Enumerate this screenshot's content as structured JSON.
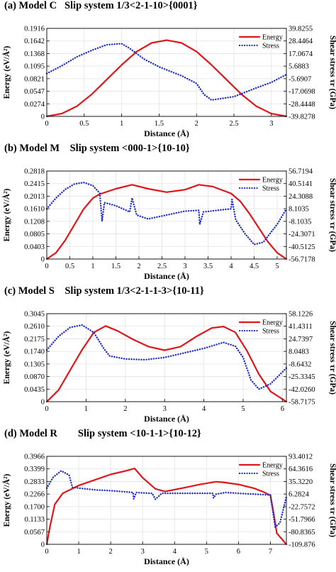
{
  "chart_data": [
    {
      "type": "line",
      "title": "(a) Model C   Slip system 1/3<2-1-10>{0001}",
      "xlabel": "Distance (Å)",
      "ylabel": "Energy (eV/Å²)",
      "y2label": "Shear stress τr (GPa)",
      "xlim": [
        0,
        3.2
      ],
      "xticks": [
        "0",
        "0.5",
        "1",
        "1.5",
        "2",
        "2.5",
        "3"
      ],
      "xtick_values": [
        0,
        0.5,
        1,
        1.5,
        2,
        2.5,
        3
      ],
      "ylim": [
        0,
        0.1916
      ],
      "yticks": [
        "0",
        "0.0274",
        "0.0547",
        "0.0821",
        "0.1095",
        "0.1368",
        "0.1642",
        "0.1916"
      ],
      "y2lim": [
        -39.8278,
        39.8255
      ],
      "y2ticks": [
        "-39.8278",
        "-28.4448",
        "-17.0698",
        "-5.6907",
        "5.6883",
        "17.0674",
        "28.4464",
        "39.8255"
      ],
      "legend_position": "top-right",
      "grid": true,
      "series": [
        {
          "name": "Energy",
          "axis": "left",
          "color": "#e0161b",
          "style": "solid",
          "x": [
            0,
            0.2,
            0.4,
            0.6,
            0.8,
            1.0,
            1.2,
            1.4,
            1.6,
            1.8,
            2.0,
            2.2,
            2.4,
            2.6,
            2.8,
            3.0,
            3.2
          ],
          "y": [
            0,
            0.006,
            0.022,
            0.048,
            0.08,
            0.112,
            0.141,
            0.16,
            0.166,
            0.16,
            0.141,
            0.112,
            0.08,
            0.048,
            0.022,
            0.006,
            0
          ]
        },
        {
          "name": "Stress",
          "axis": "right",
          "color": "#1f2ed1",
          "style": "dotted",
          "x": [
            0,
            0.2,
            0.4,
            0.6,
            0.8,
            1.0,
            1.1,
            1.3,
            1.5,
            1.8,
            2.0,
            2.1,
            2.2,
            2.5,
            2.8,
            3.0,
            3.2
          ],
          "y": [
            -1,
            6,
            14,
            20,
            25,
            26,
            22,
            12,
            5,
            -3,
            -10,
            -20,
            -25,
            -22,
            -14,
            -9,
            -2
          ]
        }
      ]
    },
    {
      "type": "line",
      "title": "(b) Model M    Slip system <000-1>{10-10}",
      "xlabel": "Distance (Å)",
      "ylabel": "Energy (eV/Å²)",
      "y2label": "Shear stress τr (GPa)",
      "xlim": [
        0,
        5.2
      ],
      "xticks": [
        "0",
        "0.5",
        "1",
        "1.5",
        "2",
        "2.5",
        "3",
        "3.5",
        "4",
        "4.5",
        "5"
      ],
      "xtick_values": [
        0,
        0.5,
        1,
        1.5,
        2,
        2.5,
        3,
        3.5,
        4,
        4.5,
        5
      ],
      "ylim": [
        0,
        0.2818
      ],
      "yticks": [
        "0",
        "0.0403",
        "0.0805",
        "0.1208",
        "0.1610",
        "0.2013",
        "0.2415",
        "0.2818"
      ],
      "y2lim": [
        -56.7178,
        56.7194
      ],
      "y2ticks": [
        "-56.7178",
        "-40.5125",
        "-24.3071",
        "-8.1035",
        "8.1035",
        "24.3088",
        "40.5141",
        "56.7194"
      ],
      "legend_position": "top-right",
      "grid": true,
      "series": [
        {
          "name": "Energy",
          "axis": "left",
          "color": "#e0161b",
          "style": "solid",
          "x": [
            0,
            0.2,
            0.4,
            0.6,
            0.8,
            1.0,
            1.15,
            1.5,
            1.85,
            2.2,
            2.6,
            3.0,
            3.3,
            3.6,
            4.0,
            4.2,
            4.4,
            4.6,
            4.8,
            5.0,
            5.2
          ],
          "y": [
            0,
            0.02,
            0.06,
            0.11,
            0.16,
            0.195,
            0.208,
            0.225,
            0.238,
            0.225,
            0.214,
            0.222,
            0.238,
            0.232,
            0.21,
            0.185,
            0.145,
            0.1,
            0.055,
            0.02,
            0
          ]
        },
        {
          "name": "Stress",
          "axis": "right",
          "color": "#1f2ed1",
          "style": "dotted",
          "x": [
            0,
            0.2,
            0.4,
            0.6,
            0.8,
            1.0,
            1.15,
            1.2,
            1.25,
            1.5,
            1.8,
            1.85,
            1.95,
            2.2,
            2.6,
            3.0,
            3.3,
            3.32,
            3.4,
            3.7,
            4.0,
            4.02,
            4.1,
            4.3,
            4.5,
            4.7,
            5.0,
            5.2
          ],
          "y": [
            8,
            22,
            33,
            40,
            42,
            38,
            28,
            -8,
            16,
            12,
            4,
            22,
            0,
            -5,
            0,
            5,
            6,
            -12,
            4,
            6,
            8,
            20,
            -6,
            -24,
            -38,
            -35,
            -12,
            8
          ]
        }
      ]
    },
    {
      "type": "line",
      "title": "(c) Model S    Slip system 1/3<2-1-1-3>{10-11}",
      "xlabel": "Distance (Å)",
      "ylabel": "Energy (eV/Å²)",
      "y2label": "Shear stress τr (GPa)",
      "xlim": [
        0,
        6.1
      ],
      "xticks": [
        "0",
        "1",
        "2",
        "3",
        "4",
        "5",
        "6"
      ],
      "xtick_values": [
        0,
        1,
        2,
        3,
        4,
        5,
        6
      ],
      "ylim": [
        0,
        0.3045
      ],
      "yticks": [
        "0",
        "0.0435",
        "0.0870",
        "0.1305",
        "0.1740",
        "0.2175",
        "0.2610",
        "0.3045"
      ],
      "y2lim": [
        -58.7175,
        58.1226
      ],
      "y2ticks": [
        "-58.7175",
        "-42.0260",
        "-25.3345",
        "-8.6432",
        "8.0483",
        "24.7397",
        "41.4311",
        "58.1226"
      ],
      "legend_position": "top-right",
      "grid": true,
      "series": [
        {
          "name": "Energy",
          "axis": "left",
          "color": "#e0161b",
          "style": "solid",
          "x": [
            0,
            0.3,
            0.6,
            0.9,
            1.2,
            1.5,
            1.8,
            2.2,
            2.6,
            3.0,
            3.4,
            3.8,
            4.2,
            4.5,
            4.8,
            5.1,
            5.4,
            5.7,
            6.1
          ],
          "y": [
            0,
            0.04,
            0.11,
            0.18,
            0.24,
            0.262,
            0.245,
            0.215,
            0.19,
            0.178,
            0.19,
            0.225,
            0.255,
            0.26,
            0.24,
            0.175,
            0.095,
            0.035,
            0
          ]
        },
        {
          "name": "Stress",
          "axis": "right",
          "color": "#1f2ed1",
          "style": "dotted",
          "x": [
            0,
            0.3,
            0.6,
            0.9,
            1.2,
            1.45,
            1.6,
            2.0,
            2.5,
            3.0,
            3.5,
            4.0,
            4.5,
            4.8,
            5.0,
            5.2,
            5.4,
            5.7,
            6.1
          ],
          "y": [
            10,
            28,
            40,
            43,
            33,
            12,
            2,
            -2,
            -3,
            0,
            6,
            12,
            20,
            15,
            0,
            -30,
            -42,
            -35,
            -14
          ]
        }
      ]
    },
    {
      "type": "line",
      "title": "(d) Model R        Slip system <10-1-1>{10-12}",
      "xlabel": "Distance (Å)",
      "ylabel": "Energy (eV/Å²)",
      "y2label": "Shear stress τr (GPa)",
      "xlim": [
        0,
        7.5
      ],
      "xticks": [
        "0",
        "1",
        "2",
        "3",
        "4",
        "5",
        "6",
        "7"
      ],
      "xtick_values": [
        0,
        1,
        2,
        3,
        4,
        5,
        6,
        7
      ],
      "ylim": [
        0,
        0.3966
      ],
      "yticks": [
        "0",
        "0.0567",
        "0.1133",
        "0.1700",
        "0.2266",
        "0.2833",
        "0.3399",
        "0.3966"
      ],
      "y2lim": [
        -109.876,
        93.4012
      ],
      "y2ticks": [
        "-109.876",
        "-80.8365",
        "-51.7966",
        "-22.7572",
        "6.2824",
        "35.3220",
        "64.3616",
        "93.4012"
      ],
      "legend_position": "top-right",
      "grid": true,
      "series": [
        {
          "name": "Energy",
          "axis": "left",
          "color": "#e0161b",
          "style": "solid",
          "x": [
            0,
            0.1,
            0.25,
            0.5,
            1.0,
            1.5,
            2.0,
            2.5,
            2.75,
            3.0,
            3.4,
            3.7,
            4.2,
            4.8,
            5.3,
            5.5,
            6.0,
            6.5,
            6.8,
            7.0,
            7.1,
            7.2,
            7.5
          ],
          "y": [
            0,
            0.08,
            0.18,
            0.23,
            0.265,
            0.29,
            0.315,
            0.332,
            0.342,
            0.3,
            0.25,
            0.238,
            0.252,
            0.27,
            0.282,
            0.28,
            0.27,
            0.252,
            0.235,
            0.22,
            0.14,
            0.05,
            0
          ]
        },
        {
          "name": "Stress",
          "axis": "right",
          "color": "#1f2ed1",
          "style": "dotted",
          "x": [
            0,
            0.2,
            0.45,
            0.7,
            0.8,
            1.0,
            1.5,
            2.0,
            2.7,
            2.72,
            2.8,
            3.0,
            3.3,
            3.4,
            3.6,
            4.0,
            5.2,
            5.22,
            5.3,
            5.6,
            6.0,
            6.5,
            7.0,
            7.15,
            7.3,
            7.5
          ],
          "y": [
            20,
            45,
            60,
            50,
            22,
            20,
            16,
            14,
            10,
            -5,
            10,
            9,
            8,
            -6,
            8,
            8,
            8,
            -3,
            6,
            10,
            8,
            6,
            4,
            -70,
            -60,
            0
          ]
        }
      ]
    }
  ]
}
